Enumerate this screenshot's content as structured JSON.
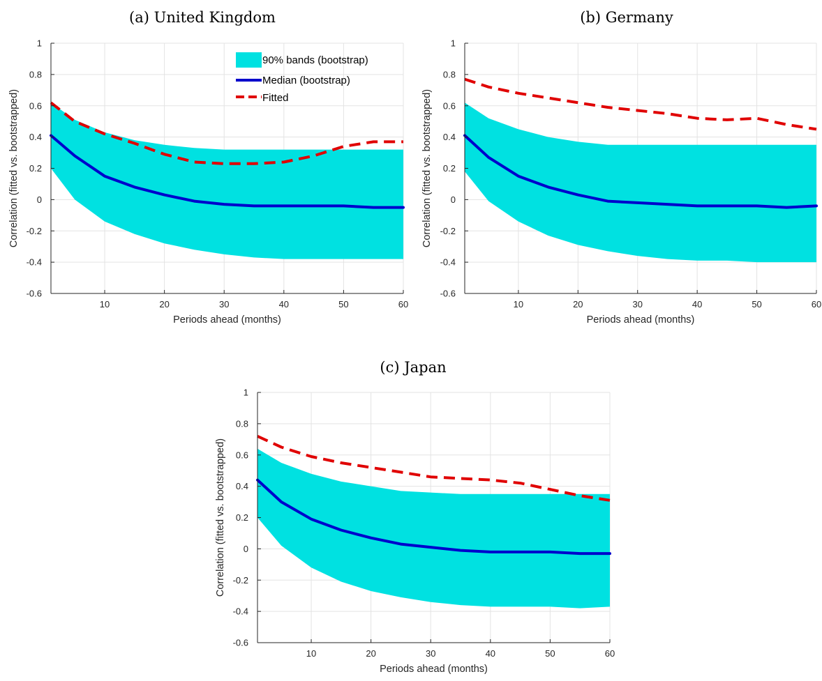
{
  "chart_data": [
    {
      "type": "line",
      "title": "(a) United Kingdom",
      "xlabel": "Periods ahead (months)",
      "ylabel": "Correlation (fitted vs. bootstrapped)",
      "xlim": [
        1,
        60
      ],
      "ylim": [
        -0.6,
        1
      ],
      "xticks": [
        10,
        20,
        30,
        40,
        50,
        60
      ],
      "yticks": [
        -0.6,
        -0.4,
        -0.2,
        0,
        0.2,
        0.4,
        0.6,
        0.8,
        1
      ],
      "grid": true,
      "legend": {
        "placement": "top-right",
        "entries": [
          "90% bands (bootstrap)",
          "Median (bootstrap)",
          "Fitted"
        ]
      },
      "x": [
        1,
        5,
        10,
        15,
        20,
        25,
        30,
        35,
        40,
        45,
        50,
        55,
        60
      ],
      "series": [
        {
          "name": "90% bands (bootstrap)",
          "color": "#00e1e1",
          "lower": [
            0.2,
            0.0,
            -0.14,
            -0.22,
            -0.28,
            -0.32,
            -0.35,
            -0.37,
            -0.38,
            -0.38,
            -0.38,
            -0.38,
            -0.38
          ],
          "upper": [
            0.62,
            0.51,
            0.43,
            0.38,
            0.35,
            0.33,
            0.32,
            0.32,
            0.32,
            0.32,
            0.32,
            0.32,
            0.32
          ]
        },
        {
          "name": "Median (bootstrap)",
          "color": "#0000cc",
          "values": [
            0.41,
            0.28,
            0.15,
            0.08,
            0.03,
            -0.01,
            -0.03,
            -0.04,
            -0.04,
            -0.04,
            -0.04,
            -0.05,
            -0.05
          ]
        },
        {
          "name": "Fitted",
          "color": "#e00000",
          "values": [
            0.62,
            0.5,
            0.42,
            0.36,
            0.29,
            0.24,
            0.23,
            0.23,
            0.24,
            0.28,
            0.34,
            0.37,
            0.37
          ]
        }
      ]
    },
    {
      "type": "line",
      "title": "(b) Germany",
      "xlabel": "Periods ahead (months)",
      "ylabel": "Correlation (fitted vs. bootstrapped)",
      "xlim": [
        1,
        60
      ],
      "ylim": [
        -0.6,
        1
      ],
      "xticks": [
        10,
        20,
        30,
        40,
        50,
        60
      ],
      "yticks": [
        -0.6,
        -0.4,
        -0.2,
        0,
        0.2,
        0.4,
        0.6,
        0.8,
        1
      ],
      "grid": true,
      "x": [
        1,
        5,
        10,
        15,
        20,
        25,
        30,
        35,
        40,
        45,
        50,
        55,
        60
      ],
      "series": [
        {
          "name": "90% bands (bootstrap)",
          "color": "#00e1e1",
          "lower": [
            0.18,
            -0.01,
            -0.14,
            -0.23,
            -0.29,
            -0.33,
            -0.36,
            -0.38,
            -0.39,
            -0.39,
            -0.4,
            -0.4,
            -0.4
          ],
          "upper": [
            0.62,
            0.52,
            0.45,
            0.4,
            0.37,
            0.35,
            0.35,
            0.35,
            0.35,
            0.35,
            0.35,
            0.35,
            0.35
          ]
        },
        {
          "name": "Median (bootstrap)",
          "color": "#0000cc",
          "values": [
            0.41,
            0.27,
            0.15,
            0.08,
            0.03,
            -0.01,
            -0.02,
            -0.03,
            -0.04,
            -0.04,
            -0.04,
            -0.05,
            -0.04
          ]
        },
        {
          "name": "Fitted",
          "color": "#e00000",
          "values": [
            0.77,
            0.72,
            0.68,
            0.65,
            0.62,
            0.59,
            0.57,
            0.55,
            0.52,
            0.51,
            0.52,
            0.48,
            0.45
          ]
        }
      ]
    },
    {
      "type": "line",
      "title": "(c) Japan",
      "xlabel": "Periods ahead (months)",
      "ylabel": "Correlation (fitted vs. bootstrapped)",
      "xlim": [
        1,
        60
      ],
      "ylim": [
        -0.6,
        1
      ],
      "xticks": [
        10,
        20,
        30,
        40,
        50,
        60
      ],
      "yticks": [
        -0.6,
        -0.4,
        -0.2,
        0,
        0.2,
        0.4,
        0.6,
        0.8,
        1
      ],
      "grid": true,
      "x": [
        1,
        5,
        10,
        15,
        20,
        25,
        30,
        35,
        40,
        45,
        50,
        55,
        60
      ],
      "series": [
        {
          "name": "90% bands (bootstrap)",
          "color": "#00e1e1",
          "lower": [
            0.2,
            0.02,
            -0.12,
            -0.21,
            -0.27,
            -0.31,
            -0.34,
            -0.36,
            -0.37,
            -0.37,
            -0.37,
            -0.38,
            -0.37
          ],
          "upper": [
            0.64,
            0.55,
            0.48,
            0.43,
            0.4,
            0.37,
            0.36,
            0.35,
            0.35,
            0.35,
            0.35,
            0.35,
            0.35
          ]
        },
        {
          "name": "Median (bootstrap)",
          "color": "#0000cc",
          "values": [
            0.44,
            0.3,
            0.19,
            0.12,
            0.07,
            0.03,
            0.01,
            -0.01,
            -0.02,
            -0.02,
            -0.02,
            -0.03,
            -0.03
          ]
        },
        {
          "name": "Fitted",
          "color": "#e00000",
          "values": [
            0.72,
            0.65,
            0.59,
            0.55,
            0.52,
            0.49,
            0.46,
            0.45,
            0.44,
            0.42,
            0.38,
            0.34,
            0.31
          ]
        }
      ]
    }
  ]
}
